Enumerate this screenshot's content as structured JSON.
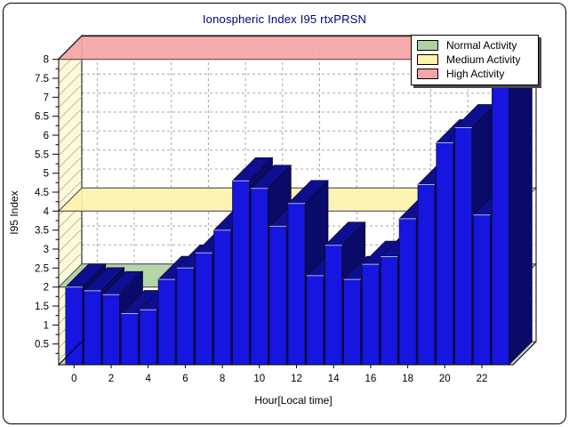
{
  "title": "Ionospheric Index I95 rtxPRSN",
  "legend": {
    "items": [
      {
        "label": "Normal Activity",
        "color": "#aed2a2"
      },
      {
        "label": "Medium Activity",
        "color": "#fcf3ac"
      },
      {
        "label": "High Activity",
        "color": "#f5a5a5"
      }
    ]
  },
  "chart_data": {
    "type": "bar",
    "title": "Ionospheric Index I95 rtxPRSN",
    "xlabel": "Hour[Local time]",
    "ylabel": "I95 Index",
    "x": [
      0,
      1,
      2,
      3,
      4,
      5,
      6,
      7,
      8,
      9,
      10,
      11,
      12,
      13,
      14,
      15,
      16,
      17,
      18,
      19,
      20,
      21,
      22,
      23
    ],
    "values": [
      2.0,
      1.9,
      1.8,
      1.3,
      1.4,
      2.2,
      2.5,
      2.9,
      3.5,
      4.8,
      4.6,
      3.6,
      4.2,
      2.3,
      3.1,
      2.2,
      2.6,
      2.8,
      3.8,
      4.7,
      5.8,
      6.2,
      3.9,
      7.5
    ],
    "ylim": [
      0,
      8.5
    ],
    "xticks": [
      0,
      2,
      4,
      6,
      8,
      10,
      12,
      14,
      16,
      18,
      20,
      22
    ],
    "yticks": [
      0.5,
      1,
      1.5,
      2,
      2.5,
      3,
      3.5,
      4,
      4.5,
      5,
      5.5,
      6,
      6.5,
      7,
      7.5,
      8
    ],
    "grid": "dashed",
    "legend_position": "top-right",
    "bands": [
      {
        "label": "Normal Activity",
        "level": 2,
        "color": "#aed2a2"
      },
      {
        "label": "Medium Activity",
        "level": 4,
        "color": "#fcf3ac"
      },
      {
        "label": "High Activity",
        "level": 8,
        "color": "#f5a5a5"
      }
    ],
    "colors": {
      "bar_face": "#1616e0",
      "bar_top": "#0e0e90",
      "bar_side": "#0a0a68",
      "wall": "#fcf9dc",
      "wall_hatch": "#ccc69b",
      "floor": "#cccccc",
      "grid": "#a8a8a8",
      "band_edge": "#4a3050",
      "title_color": "#000080"
    }
  }
}
